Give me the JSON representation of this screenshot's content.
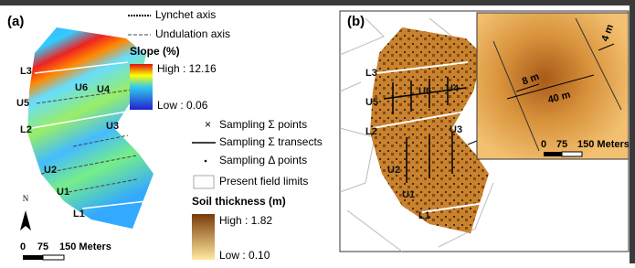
{
  "panel_a": {
    "label": "(a)",
    "map_labels": [
      "L3",
      "U5",
      "U6",
      "U4",
      "L2",
      "U3",
      "U2",
      "U1",
      "L1"
    ],
    "north": "N",
    "scale": [
      "0",
      "75",
      "150 Meters"
    ]
  },
  "legend": {
    "lynchet": "Lynchet axis",
    "undulation": "Undulation axis",
    "slope_title": "Slope (%)",
    "slope_high": "High : 12.16",
    "slope_low": "Low : 0.06",
    "sigma_points": "Sampling Σ points",
    "sigma_transects": "Sampling Σ transects",
    "delta_points": "Sampling Δ points",
    "field_limits": "Present field limits",
    "soil_title": "Soil thickness (m)",
    "soil_high": "High : 1.82",
    "soil_low": "Low : 0.10"
  },
  "panel_b": {
    "label": "(b)",
    "map_labels": [
      "L3",
      "U5",
      "U6",
      "U4",
      "L2",
      "U3",
      "U2",
      "U1",
      "L1"
    ],
    "inset": {
      "d1": "4 m",
      "d2": "8 m",
      "d3": "40 m",
      "scale": [
        "0",
        "75",
        "150 Meters"
      ]
    }
  }
}
